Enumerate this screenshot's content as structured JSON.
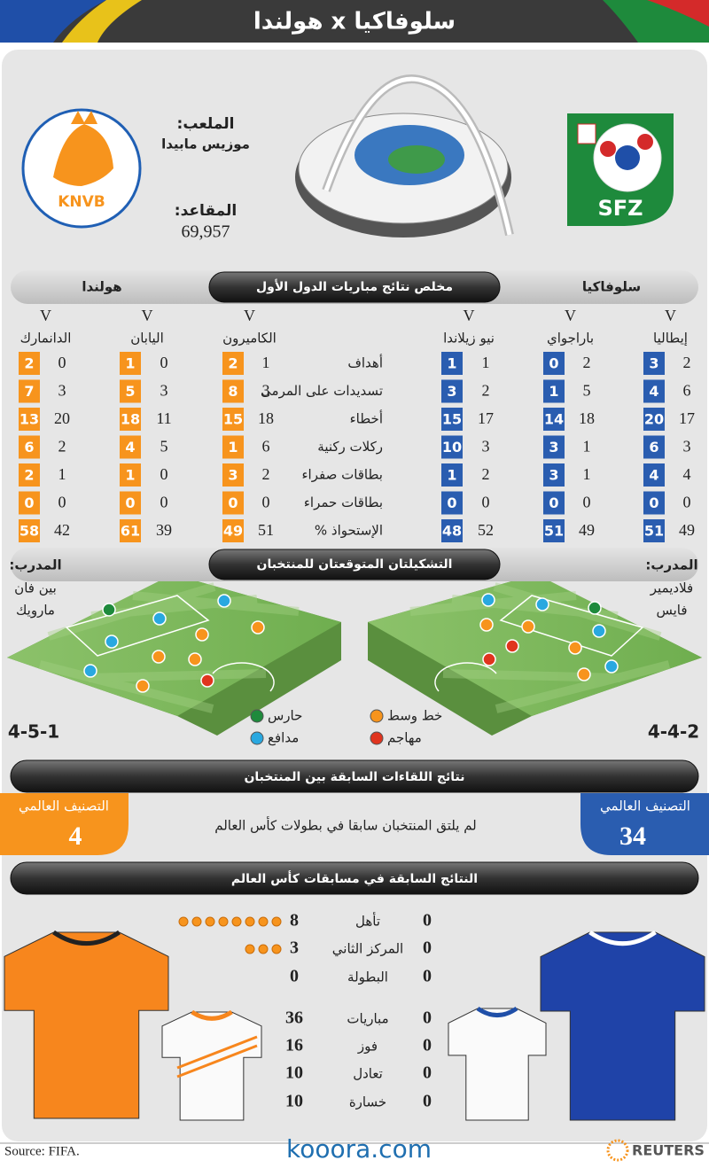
{
  "header": {
    "title": "سلوفاكيا x هولندا"
  },
  "venue": {
    "stadium_label": "الملعب:",
    "stadium": "موزيس مابيدا",
    "seats_label": "المقاعد:",
    "seats": "69,957"
  },
  "logos": {
    "left": "KNVB",
    "right": "SFZ"
  },
  "group_results": {
    "title": "مخلص نتائج مباريات الدول الأول",
    "left_team": "هولندا",
    "right_team": "سلوفاكيا",
    "stats": [
      "أهداف",
      "تسديدات على المرمى",
      "أخطاء",
      "ركلات ركنية",
      "بطاقات صفراء",
      "بطاقات حمراء",
      "الإستحواذ %"
    ],
    "left_matches": [
      {
        "mark": "V",
        "opponent": "الدانمارك",
        "team": [
          2,
          7,
          13,
          6,
          2,
          0,
          58
        ],
        "opponent_values": [
          0,
          3,
          20,
          2,
          1,
          0,
          42
        ]
      },
      {
        "mark": "V",
        "opponent": "اليابان",
        "team": [
          1,
          5,
          18,
          4,
          1,
          0,
          61
        ],
        "opponent_values": [
          0,
          3,
          11,
          5,
          0,
          0,
          39
        ]
      },
      {
        "mark": "V",
        "opponent": "الكاميرون",
        "team": [
          2,
          8,
          15,
          1,
          3,
          0,
          49
        ],
        "opponent_values": [
          1,
          3,
          18,
          6,
          2,
          0,
          51
        ]
      }
    ],
    "right_matches": [
      {
        "mark": "V",
        "opponent": "نيو زيلاندا",
        "team": [
          1,
          3,
          15,
          10,
          1,
          0,
          48
        ],
        "opponent_values": [
          1,
          2,
          17,
          3,
          2,
          0,
          52
        ]
      },
      {
        "mark": "V",
        "opponent": "باراجواي",
        "team": [
          0,
          1,
          14,
          3,
          3,
          0,
          51
        ],
        "opponent_values": [
          2,
          5,
          18,
          1,
          1,
          0,
          49
        ]
      },
      {
        "mark": "V",
        "opponent": "إيطاليا",
        "team": [
          3,
          4,
          20,
          6,
          4,
          0,
          51
        ],
        "opponent_values": [
          2,
          6,
          17,
          3,
          4,
          0,
          49
        ]
      }
    ]
  },
  "lineups": {
    "title": "التشكيلتان المتوقعتان للمنتخبان",
    "left_coach": {
      "label": "المدرب:",
      "name_lines": [
        "بين فان",
        "مارويك"
      ]
    },
    "right_coach": {
      "label": "المدرب:",
      "name_lines": [
        "فلاديمير",
        "فايس"
      ]
    },
    "left_formation": "4-5-1",
    "right_formation": "4-4-2",
    "legend": [
      {
        "name": "حارس",
        "color": "#1e8a3c"
      },
      {
        "name": "مدافع",
        "color": "#29a8e0"
      },
      {
        "name": "خط وسط",
        "color": "#f7941d"
      },
      {
        "name": "مهاجم",
        "color": "#e0341e"
      }
    ]
  },
  "head_to_head": {
    "title": "نتائج اللقاءات السابقة بين المنتخبان",
    "text": "لم يلتق المنتخبان سابقا في بطولات كأس العالم",
    "left_ranking": {
      "label": "التصنيف العالمي",
      "value": "4"
    },
    "right_ranking": {
      "label": "التصنيف العالمي",
      "value": "34"
    }
  },
  "world_cup_history": {
    "title": "النتائج السابقة في مسابقات كأس العالم",
    "rows": [
      {
        "label": "تأهل",
        "left": 8,
        "right": 0
      },
      {
        "label": "المركز الثاني",
        "left": 3,
        "right": 0
      },
      {
        "label": "البطولة",
        "left": 0,
        "right": 0
      },
      {
        "label": "مباريات",
        "left": 36,
        "right": 0
      },
      {
        "label": "فوز",
        "left": 16,
        "right": 0
      },
      {
        "label": "تعادل",
        "left": 10,
        "right": 0
      },
      {
        "label": "خسارة",
        "left": 10,
        "right": 0
      }
    ]
  },
  "footer": {
    "source": "Source: FIFA.",
    "site": "kooora.com",
    "agency": "REUTERS"
  }
}
